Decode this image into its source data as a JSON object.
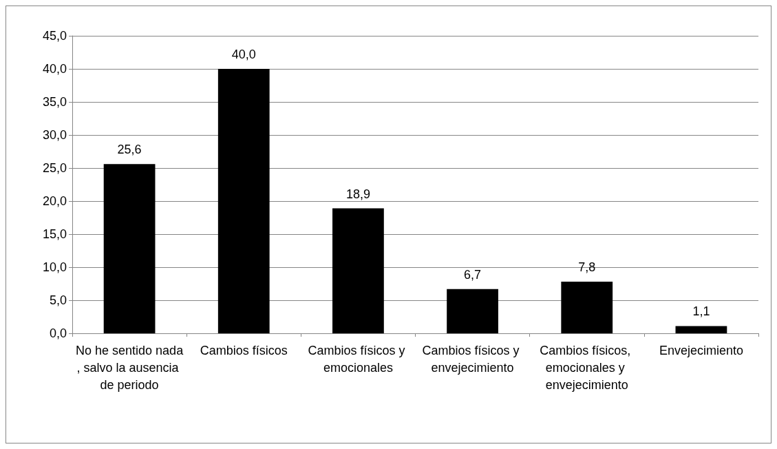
{
  "chart_data": {
    "type": "bar",
    "categories": [
      "No he sentido nada, salvo la ausencia de periodo",
      "Cambios físicos",
      "Cambios físicos y emocionales",
      "Cambios físicos y envejecimiento",
      "Cambios físicos, emocionales y envejecimiento",
      "Envejecimiento"
    ],
    "values": [
      25.6,
      40.0,
      18.9,
      6.7,
      7.8,
      1.1
    ],
    "value_labels": [
      "25,6",
      "40,0",
      "18,9",
      "6,7",
      "7,8",
      "1,1"
    ],
    "color": "#000000",
    "ylim": [
      0,
      45
    ],
    "yticks": [
      {
        "value": 0,
        "label": "0,0"
      },
      {
        "value": 5,
        "label": "5,0"
      },
      {
        "value": 10,
        "label": "10,0"
      },
      {
        "value": 15,
        "label": "15,0"
      },
      {
        "value": 20,
        "label": "20,0"
      },
      {
        "value": 25,
        "label": "25,0"
      },
      {
        "value": 30,
        "label": "30,0"
      },
      {
        "value": 35,
        "label": "35,0"
      },
      {
        "value": 40,
        "label": "40,0"
      },
      {
        "value": 45,
        "label": "45,0"
      }
    ],
    "grid": "y"
  }
}
